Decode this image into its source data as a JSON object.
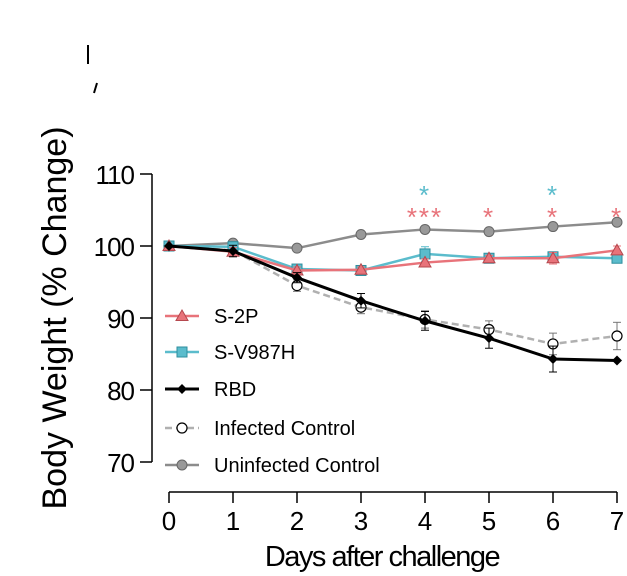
{
  "chart_data": {
    "type": "line",
    "title": "",
    "xlabel": "Days after challenge",
    "ylabel": "Body Weight (% Change)",
    "x": [
      0,
      1,
      2,
      3,
      4,
      5,
      6,
      7
    ],
    "xlim": [
      0,
      7
    ],
    "ylim": [
      70,
      110
    ],
    "y_ticks": [
      70,
      80,
      90,
      100,
      110
    ],
    "x_ticks": [
      0,
      1,
      2,
      3,
      4,
      5,
      6,
      7
    ],
    "grid": false,
    "legend_position": "lower-left",
    "series": [
      {
        "name": "S-2P",
        "color": "#e8737a",
        "marker": "triangle",
        "line_style": "solid",
        "values": [
          100,
          99.2,
          96.6,
          96.7,
          97.7,
          98.3,
          98.3,
          99.4
        ],
        "error": [
          0,
          0.6,
          0.5,
          0.4,
          0.5,
          0.4,
          0.8,
          0.6
        ]
      },
      {
        "name": "S-V987H",
        "color": "#5bbccc",
        "marker": "square",
        "line_style": "solid",
        "values": [
          100,
          99.9,
          96.8,
          96.6,
          98.9,
          98.3,
          98.5,
          98.3
        ],
        "error": [
          0,
          0.6,
          0.5,
          0.4,
          1.0,
          0.4,
          0.5,
          0.4
        ]
      },
      {
        "name": "RBD",
        "color": "#000000",
        "marker": "diamond",
        "line_style": "solid",
        "values": [
          100,
          99.3,
          95.6,
          92.4,
          89.6,
          87.2,
          84.3,
          84.1
        ],
        "error": [
          0,
          0.8,
          0.7,
          1.0,
          1.3,
          1.4,
          1.8,
          0
        ]
      },
      {
        "name": "Infected Control",
        "color": "#aaaaaa",
        "marker": "open-circle",
        "line_style": "dashed",
        "values": [
          100,
          99.4,
          94.5,
          91.5,
          89.8,
          88.4,
          86.4,
          87.5
        ],
        "error": [
          0,
          0.7,
          0.8,
          0.9,
          1.2,
          1.2,
          1.5,
          1.9
        ]
      },
      {
        "name": "Uninfected Control",
        "color": "#8c8c8c",
        "marker": "filled-circle",
        "line_style": "solid",
        "values": [
          100,
          100.4,
          99.7,
          101.6,
          102.3,
          102.0,
          102.7,
          103.3
        ],
        "error": [
          0,
          0,
          0,
          0,
          0,
          0,
          0,
          0
        ]
      }
    ],
    "annotations": [
      {
        "day": 4,
        "stack": [
          {
            "text": "*",
            "color": "#5bbccc"
          },
          {
            "text": "***",
            "color": "#e8737a"
          }
        ]
      },
      {
        "day": 5,
        "stack": [
          {
            "text": "*",
            "color": "#e8737a"
          }
        ]
      },
      {
        "day": 6,
        "stack": [
          {
            "text": "*",
            "color": "#5bbccc"
          },
          {
            "text": "*",
            "color": "#e8737a"
          }
        ]
      },
      {
        "day": 7,
        "stack": [
          {
            "text": "*",
            "color": "#e8737a"
          }
        ]
      }
    ]
  }
}
